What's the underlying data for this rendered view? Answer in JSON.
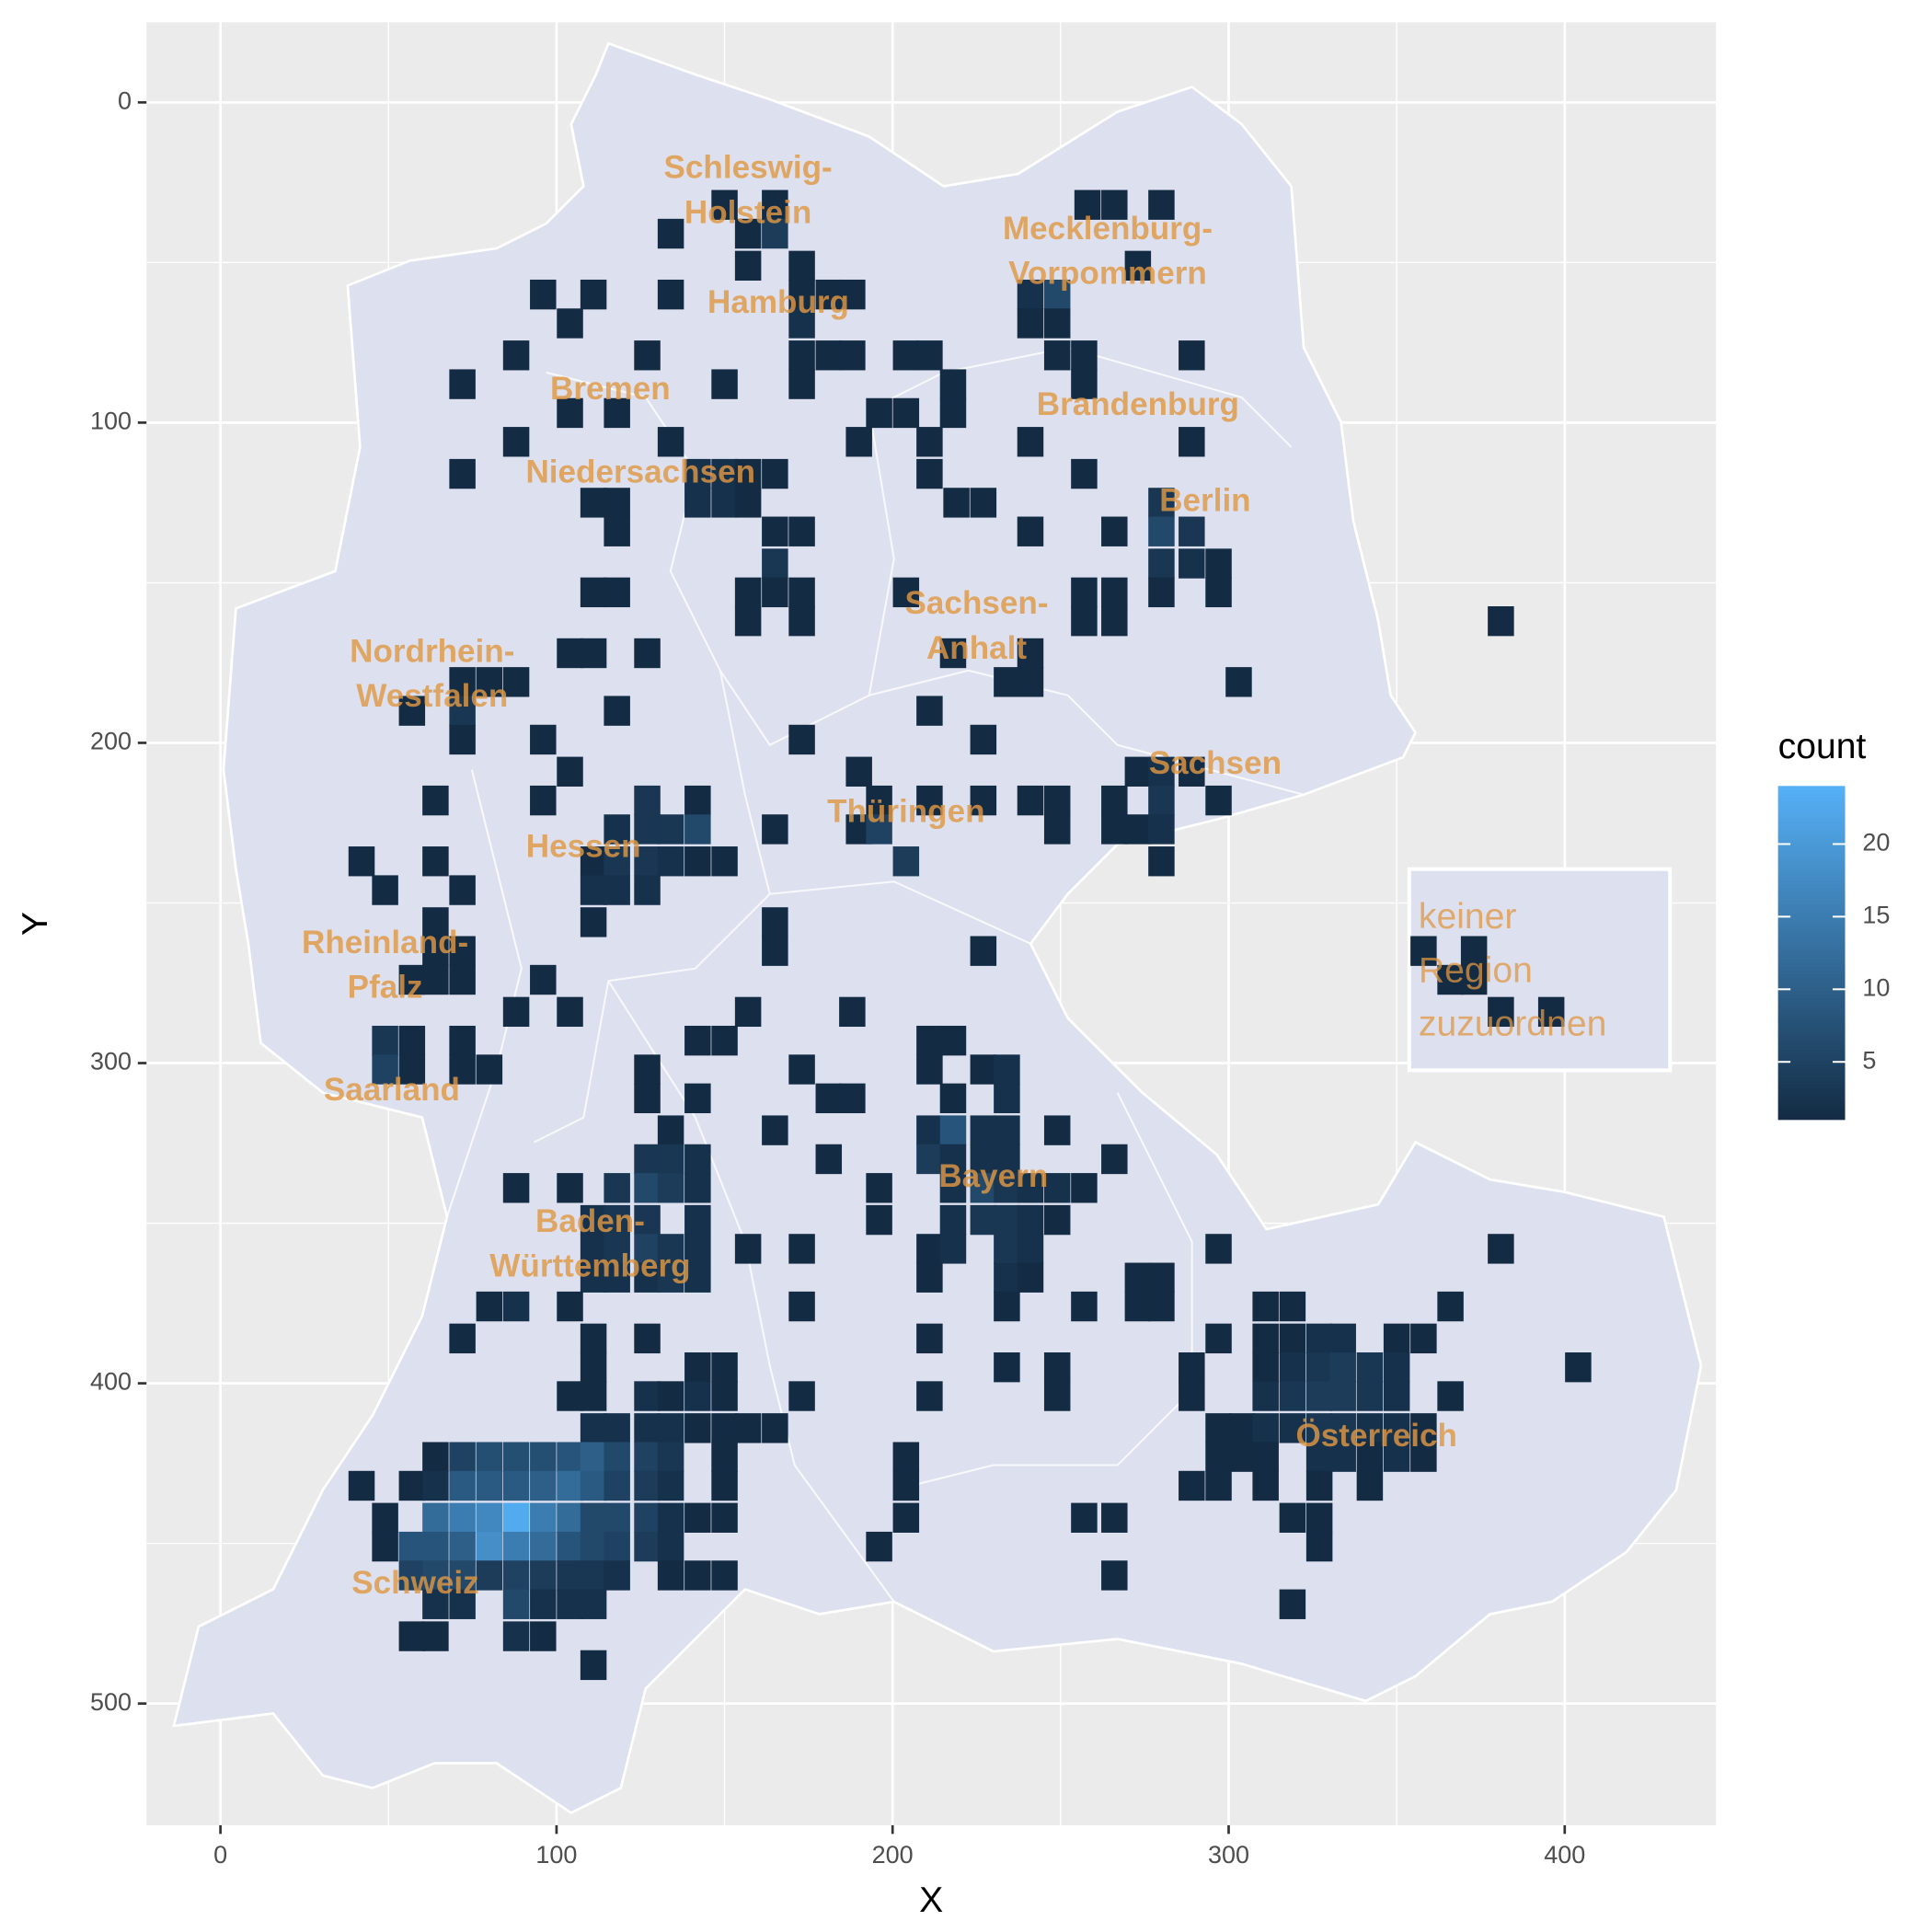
{
  "chart_data": {
    "type": "bin2d",
    "x_label": "X",
    "y_label": "Y",
    "xlim": [
      -22,
      445
    ],
    "xticks": [
      0,
      100,
      200,
      300,
      400
    ],
    "ylim": [
      538,
      -25
    ],
    "yticks": [
      0,
      100,
      200,
      300,
      400,
      500
    ],
    "grid": true,
    "binwidth": [
      7.8,
      9.3
    ],
    "legend_title": "count",
    "fill_limits": [
      1,
      24
    ],
    "fill_ticks": [
      5,
      10,
      15,
      20
    ],
    "color_low": "#132b43",
    "color_high": "#56b1f7",
    "map_color": "#dde0ef",
    "region_labels": [
      [
        "Schleswig-",
        "Holstein"
      ],
      [
        "Mecklenburg-",
        "Vorpommern"
      ],
      [
        "Hamburg"
      ],
      [
        "Bremen"
      ],
      [
        "Brandenburg"
      ],
      [
        "Niedersachsen"
      ],
      [
        "Berlin"
      ],
      [
        "Sachsen-",
        "Anhalt"
      ],
      [
        "Nordrhein-",
        "Westfalen"
      ],
      [
        "Sachsen"
      ],
      [
        "Thüringen"
      ],
      [
        "Hessen"
      ],
      [
        "Rheinland-",
        "Pfalz"
      ],
      [
        "Saarland"
      ],
      [
        "Bayern"
      ],
      [
        "Baden-",
        "Württemberg"
      ],
      [
        "Österreich"
      ],
      [
        "Schweiz"
      ]
    ],
    "unassigned_label": [
      "keiner",
      "Region",
      "zuzuordnen"
    ],
    "rows": [
      {
        "y": 32,
        "x": [
          150,
          165,
          258,
          266,
          280
        ],
        "counts": [
          1,
          1,
          1,
          1,
          1
        ]
      },
      {
        "y": 41,
        "x": [
          134,
          157,
          165
        ],
        "counts": [
          1,
          1,
          4
        ]
      },
      {
        "y": 51,
        "x": [
          157,
          173,
          273
        ],
        "counts": [
          1,
          1,
          1
        ]
      },
      {
        "y": 60,
        "x": [
          96,
          111,
          134,
          173,
          181,
          188,
          241,
          249
        ],
        "counts": [
          1,
          1,
          1,
          1,
          1,
          1,
          2,
          6
        ]
      },
      {
        "y": 69,
        "x": [
          104,
          173,
          241,
          249
        ],
        "counts": [
          1,
          2,
          1,
          1
        ]
      },
      {
        "y": 79,
        "x": [
          88,
          127,
          173,
          181,
          188,
          204,
          211,
          249,
          257,
          289
        ],
        "counts": [
          1,
          1,
          1,
          1,
          1,
          1,
          1,
          1,
          1,
          1
        ]
      },
      {
        "y": 88,
        "x": [
          72,
          150,
          173,
          218,
          257
        ],
        "counts": [
          1,
          1,
          1,
          1,
          1
        ]
      },
      {
        "y": 97,
        "x": [
          104,
          118,
          196,
          204,
          218
        ],
        "counts": [
          1,
          1,
          1,
          1,
          1
        ]
      },
      {
        "y": 106,
        "x": [
          88,
          134,
          190,
          211,
          241,
          289
        ],
        "counts": [
          1,
          1,
          1,
          1,
          1,
          1
        ]
      },
      {
        "y": 116,
        "x": [
          72,
          142,
          150,
          157,
          165,
          211,
          257
        ],
        "counts": [
          1,
          2,
          2,
          1,
          1,
          1,
          1
        ]
      },
      {
        "y": 125,
        "x": [
          111,
          118,
          142,
          150,
          157,
          219,
          227,
          280
        ],
        "counts": [
          1,
          1,
          2,
          2,
          1,
          1,
          1,
          3
        ]
      },
      {
        "y": 134,
        "x": [
          118,
          165,
          173,
          241,
          266,
          280,
          289
        ],
        "counts": [
          1,
          1,
          1,
          1,
          1,
          6,
          3
        ]
      },
      {
        "y": 144,
        "x": [
          165,
          280,
          289,
          297
        ],
        "counts": [
          3,
          3,
          2,
          1
        ]
      },
      {
        "y": 153,
        "x": [
          111,
          118,
          157,
          165,
          173,
          204,
          257,
          266,
          280,
          297
        ],
        "counts": [
          1,
          1,
          1,
          1,
          1,
          1,
          1,
          1,
          1,
          1
        ]
      },
      {
        "y": 162,
        "x": [
          157,
          173,
          257,
          266,
          381
        ],
        "counts": [
          1,
          1,
          1,
          1,
          1
        ]
      },
      {
        "y": 172,
        "x": [
          104,
          111,
          127,
          218,
          241
        ],
        "counts": [
          1,
          1,
          1,
          1,
          1
        ]
      },
      {
        "y": 181,
        "x": [
          72,
          80,
          88,
          234,
          241,
          303
        ],
        "counts": [
          1,
          1,
          1,
          1,
          1,
          1
        ]
      },
      {
        "y": 190,
        "x": [
          57,
          72,
          118,
          211
        ],
        "counts": [
          1,
          3,
          1,
          1
        ]
      },
      {
        "y": 199,
        "x": [
          72,
          96,
          173,
          227
        ],
        "counts": [
          1,
          1,
          1,
          1
        ]
      },
      {
        "y": 209,
        "x": [
          104,
          190,
          273,
          280,
          289
        ],
        "counts": [
          1,
          1,
          1,
          2,
          1
        ]
      },
      {
        "y": 218,
        "x": [
          64,
          96,
          127,
          142,
          196,
          211,
          227,
          241,
          249,
          266,
          280,
          297
        ],
        "counts": [
          1,
          1,
          3,
          1,
          1,
          1,
          1,
          1,
          1,
          1,
          3,
          1
        ]
      },
      {
        "y": 227,
        "x": [
          118,
          127,
          134,
          142,
          165,
          190,
          196,
          249,
          266,
          273,
          280
        ],
        "counts": [
          2,
          3,
          3,
          6,
          1,
          1,
          5,
          1,
          1,
          1,
          2
        ]
      },
      {
        "y": 237,
        "x": [
          42,
          64,
          111,
          118,
          127,
          134,
          142,
          150,
          204,
          280
        ],
        "counts": [
          1,
          1,
          1,
          3,
          3,
          2,
          1,
          1,
          4,
          1
        ]
      },
      {
        "y": 246,
        "x": [
          49,
          72,
          111,
          118,
          127
        ],
        "counts": [
          1,
          1,
          2,
          2,
          2
        ]
      },
      {
        "y": 256,
        "x": [
          64,
          111,
          165
        ],
        "counts": [
          1,
          1,
          1
        ]
      },
      {
        "y": 265,
        "x": [
          64,
          72,
          165,
          227,
          358,
          373
        ],
        "counts": [
          1,
          1,
          1,
          1,
          1,
          1
        ]
      },
      {
        "y": 274,
        "x": [
          57,
          64,
          72,
          96,
          366,
          373
        ],
        "counts": [
          1,
          1,
          1,
          1,
          1,
          1
        ]
      },
      {
        "y": 284,
        "x": [
          88,
          104,
          157,
          188,
          381,
          396
        ],
        "counts": [
          1,
          1,
          1,
          1,
          1,
          1
        ]
      },
      {
        "y": 293,
        "x": [
          49,
          57,
          72,
          142,
          150,
          211,
          218
        ],
        "counts": [
          3,
          1,
          1,
          1,
          1,
          1,
          1
        ]
      },
      {
        "y": 302,
        "x": [
          49,
          57,
          72,
          80,
          127,
          173,
          211,
          227,
          234
        ],
        "counts": [
          5,
          1,
          1,
          1,
          1,
          1,
          1,
          1,
          2
        ]
      },
      {
        "y": 311,
        "x": [
          127,
          142,
          181,
          188,
          218,
          234
        ],
        "counts": [
          1,
          1,
          1,
          1,
          1,
          2
        ]
      },
      {
        "y": 321,
        "x": [
          134,
          165,
          211,
          218,
          227,
          234,
          249
        ],
        "counts": [
          1,
          1,
          2,
          8,
          2,
          2,
          1
        ]
      },
      {
        "y": 330,
        "x": [
          127,
          134,
          142,
          181,
          211,
          218,
          227,
          234,
          266
        ],
        "counts": [
          3,
          3,
          2,
          1,
          4,
          2,
          2,
          2,
          1
        ]
      },
      {
        "y": 339,
        "x": [
          88,
          104,
          118,
          127,
          134,
          142,
          196,
          218,
          227,
          234,
          241,
          249,
          257
        ],
        "counts": [
          1,
          1,
          3,
          6,
          4,
          2,
          1,
          2,
          6,
          3,
          2,
          2,
          1
        ]
      },
      {
        "y": 349,
        "x": [
          111,
          118,
          127,
          142,
          196,
          218,
          227,
          234,
          241,
          249
        ],
        "counts": [
          2,
          3,
          3,
          2,
          1,
          2,
          3,
          3,
          2,
          1
        ]
      },
      {
        "y": 358,
        "x": [
          111,
          118,
          127,
          134,
          142,
          157,
          173,
          211,
          218,
          234,
          241,
          297,
          381
        ],
        "counts": [
          2,
          3,
          5,
          3,
          2,
          1,
          1,
          1,
          2,
          3,
          2,
          1,
          1
        ]
      },
      {
        "y": 367,
        "x": [
          111,
          118,
          127,
          134,
          142,
          211,
          234,
          241,
          273,
          280
        ],
        "counts": [
          2,
          2,
          2,
          3,
          2,
          1,
          2,
          1,
          1,
          1
        ]
      },
      {
        "y": 376,
        "x": [
          80,
          88,
          104,
          173,
          234,
          257,
          273,
          280,
          311,
          319,
          366
        ],
        "counts": [
          1,
          2,
          1,
          1,
          1,
          1,
          1,
          1,
          1,
          1,
          1
        ]
      },
      {
        "y": 386,
        "x": [
          72,
          111,
          127,
          211,
          297,
          311,
          319,
          327,
          334,
          350,
          358
        ],
        "counts": [
          1,
          1,
          1,
          1,
          1,
          1,
          1,
          2,
          2,
          1,
          1
        ]
      },
      {
        "y": 395,
        "x": [
          111,
          142,
          150,
          234,
          249,
          289,
          311,
          319,
          327,
          334,
          342,
          350,
          404
        ],
        "counts": [
          1,
          1,
          1,
          1,
          1,
          1,
          1,
          2,
          3,
          4,
          3,
          2,
          1
        ]
      },
      {
        "y": 404,
        "x": [
          104,
          111,
          127,
          134,
          142,
          150,
          173,
          211,
          249,
          289,
          311,
          319,
          327,
          334,
          342,
          350,
          366
        ],
        "counts": [
          1,
          1,
          2,
          1,
          2,
          1,
          1,
          1,
          1,
          1,
          2,
          3,
          4,
          4,
          3,
          2,
          1
        ]
      },
      {
        "y": 414,
        "x": [
          111,
          118,
          127,
          134,
          142,
          150,
          157,
          165,
          297,
          304,
          311,
          319,
          327,
          334,
          342,
          350,
          358
        ],
        "counts": [
          2,
          2,
          2,
          2,
          1,
          1,
          1,
          1,
          1,
          1,
          2,
          2,
          3,
          3,
          2,
          2,
          1
        ]
      },
      {
        "y": 423,
        "x": [
          64,
          72,
          80,
          88,
          96,
          104,
          111,
          118,
          127,
          134,
          150,
          204,
          297,
          304,
          311,
          327,
          334,
          342,
          350,
          358
        ],
        "counts": [
          1,
          5,
          7,
          7,
          7,
          8,
          10,
          6,
          5,
          3,
          1,
          1,
          1,
          1,
          1,
          2,
          2,
          1,
          2,
          1
        ]
      },
      {
        "y": 432,
        "x": [
          42,
          57,
          64,
          72,
          80,
          88,
          96,
          104,
          111,
          118,
          127,
          134,
          150,
          204,
          289,
          297,
          311,
          327,
          342
        ],
        "counts": [
          1,
          1,
          2,
          9,
          9,
          9,
          10,
          12,
          9,
          5,
          4,
          2,
          1,
          1,
          1,
          1,
          1,
          1,
          1
        ]
      },
      {
        "y": 442,
        "x": [
          49,
          64,
          72,
          80,
          88,
          96,
          104,
          111,
          118,
          127,
          134,
          142,
          150,
          204,
          257,
          266,
          319,
          327
        ],
        "counts": [
          1,
          12,
          15,
          17,
          23,
          15,
          12,
          6,
          6,
          5,
          2,
          1,
          1,
          1,
          1,
          1,
          1,
          1
        ]
      },
      {
        "y": 451,
        "x": [
          49,
          57,
          64,
          72,
          80,
          88,
          96,
          104,
          111,
          118,
          127,
          134,
          196,
          327
        ],
        "counts": [
          1,
          8,
          8,
          10,
          18,
          15,
          12,
          8,
          6,
          5,
          4,
          2,
          1,
          1
        ]
      },
      {
        "y": 460,
        "x": [
          57,
          64,
          72,
          80,
          88,
          96,
          104,
          111,
          118,
          134,
          142,
          150,
          266
        ],
        "counts": [
          5,
          6,
          6,
          4,
          5,
          4,
          3,
          3,
          2,
          1,
          1,
          1,
          1
        ]
      },
      {
        "y": 469,
        "x": [
          64,
          72,
          88,
          96,
          104,
          111,
          319
        ],
        "counts": [
          2,
          2,
          6,
          2,
          2,
          2,
          1
        ]
      },
      {
        "y": 479,
        "x": [
          57,
          64,
          88,
          96
        ],
        "counts": [
          1,
          1,
          2,
          1
        ]
      },
      {
        "y": 488,
        "x": [
          111
        ],
        "counts": [
          1
        ]
      }
    ]
  }
}
